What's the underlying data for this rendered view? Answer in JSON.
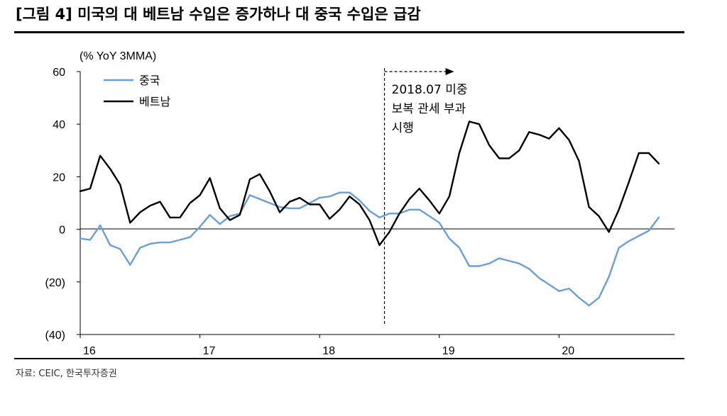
{
  "header": {
    "title": "[그림 4] 미국의 대 베트남 수입은 증가하나 대 중국 수입은 급감"
  },
  "footer": {
    "source": "자료: CEIC, 한국투자증권"
  },
  "chart_data": {
    "type": "line",
    "title": "",
    "unit_label": "(% YoY 3MMA)",
    "xlabel": "",
    "ylabel": "",
    "ylim": [
      -40,
      60
    ],
    "y_ticks": [
      {
        "value": 60,
        "label": "60"
      },
      {
        "value": 40,
        "label": "40"
      },
      {
        "value": 20,
        "label": "20"
      },
      {
        "value": 0,
        "label": "0"
      },
      {
        "value": -20,
        "label": "(20)"
      },
      {
        "value": -40,
        "label": "(40)"
      }
    ],
    "x_ticks": [
      {
        "index": 0,
        "label": "16"
      },
      {
        "index": 12,
        "label": "17"
      },
      {
        "index": 24,
        "label": "18"
      },
      {
        "index": 36,
        "label": "19"
      },
      {
        "index": 48,
        "label": "20"
      }
    ],
    "x_index_range": [
      0,
      59
    ],
    "grid": false,
    "legend_position": "top-left",
    "series": [
      {
        "name": "중국",
        "color": "#6a9fd8",
        "values": [
          -3.5,
          -4,
          1.5,
          -6,
          -7.5,
          -13.5,
          -7,
          -5.5,
          -5,
          -5,
          -4,
          -3,
          1,
          5.5,
          2,
          5,
          6,
          13,
          11.5,
          10,
          8.5,
          8,
          8,
          10,
          12,
          12.5,
          14,
          14,
          11,
          7,
          4.5,
          6,
          6,
          7.5,
          7.5,
          5,
          2.5,
          -3.5,
          -7,
          -14,
          -14,
          -13,
          -11,
          -12,
          -13,
          -15,
          -18.5,
          -21,
          -23.5,
          -22.5,
          -26,
          -29,
          -26,
          -18,
          -7,
          -4.5,
          -2.5,
          -0.5,
          4.5
        ]
      },
      {
        "name": "베트남",
        "color": "#000000",
        "values": [
          14.5,
          15.5,
          28,
          23,
          17,
          2.5,
          6.5,
          9,
          10.5,
          4.5,
          4.5,
          10,
          13,
          19.5,
          8,
          3.5,
          5.5,
          19,
          21,
          14.5,
          6.5,
          10.5,
          12,
          9.5,
          9.5,
          4,
          7.5,
          12.5,
          9.5,
          3.5,
          -6,
          -1,
          6,
          11.5,
          15.5,
          11,
          6,
          12.5,
          29,
          41,
          40,
          32,
          27,
          27,
          30,
          37,
          36,
          34.5,
          38.5,
          34,
          26,
          8.5,
          5,
          -1,
          7.5,
          18,
          29,
          29,
          25
        ]
      }
    ],
    "annotation": {
      "lines": [
        "2018.07 미중",
        "보복 관세 부과",
        "시행"
      ],
      "at_index": 30.5
    }
  }
}
